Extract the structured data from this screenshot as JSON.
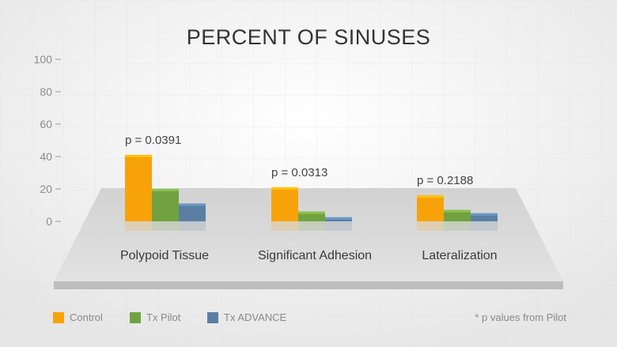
{
  "chart_data": {
    "type": "bar",
    "title": "PERCENT OF SINUSES",
    "ylim": [
      0,
      100
    ],
    "yticks": [
      0,
      20,
      40,
      60,
      80,
      100
    ],
    "categories": [
      "Polypoid Tissue",
      "Significant Adhesion",
      "Lateralization"
    ],
    "series": [
      {
        "name": "Control",
        "color": "#f7a209",
        "values": [
          41,
          21,
          16
        ]
      },
      {
        "name": "Tx Pilot",
        "color": "#71a23f",
        "values": [
          20,
          6,
          7
        ]
      },
      {
        "name": "Tx ADVANCE",
        "color": "#5b7fa3",
        "values": [
          11,
          2.5,
          5
        ]
      }
    ],
    "annotations": [
      "p = 0.0391",
      "p = 0.0313",
      "p = 0.2188"
    ],
    "footnote": "* p values from Pilot",
    "legend_position": "bottom-left"
  }
}
